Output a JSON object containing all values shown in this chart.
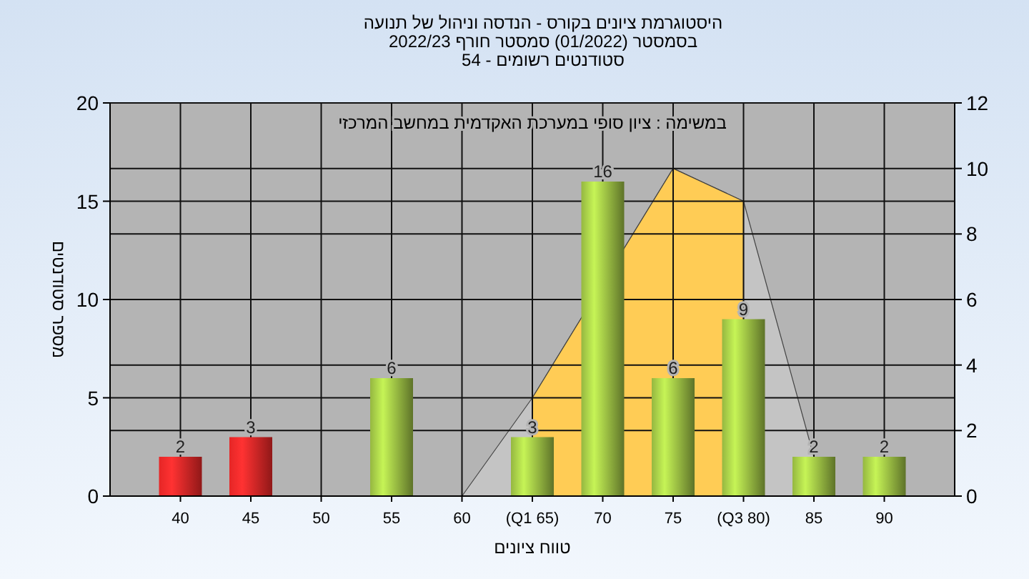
{
  "chart_data": {
    "type": "bar",
    "title": "היסטוגרמת ציונים בקורס - הנדסה וניהול של תנועה",
    "subtitle": "בסמסטר (01/2022) סמסטר חורף 2022/23\nסטודנטים רשומים - 54",
    "xlabel": "טווח ציונים",
    "ylabel": "מספר סטודנטים",
    "annotations": [
      "במשימה : ציון סופי במערכת האקדמית במחשב המרכזי"
    ],
    "categories": [
      "40",
      "45",
      "50",
      "55",
      "60",
      "(Q1 65)",
      "70",
      "75",
      "(Q3 80)",
      "85",
      "90"
    ],
    "series": [
      {
        "type": "area",
        "axis": "y2",
        "color": "#c4c4c4",
        "values": [
          null,
          null,
          null,
          null,
          0,
          3,
          null,
          10,
          9,
          1.2,
          null
        ]
      },
      {
        "type": "area",
        "axis": "y2",
        "color": "#ffcc55",
        "values": [
          null,
          null,
          null,
          null,
          null,
          3,
          null,
          10,
          9,
          null,
          null
        ]
      },
      {
        "colors": [
          "#ff2a2a",
          "#ff2a2a",
          null,
          "#a6cc48",
          null,
          "#a6cc48",
          "#a6cc48",
          "#a6cc48",
          "#a6cc48",
          "#a6cc48",
          "#a6cc48"
        ],
        "values": [
          2,
          3,
          null,
          6,
          null,
          3,
          16,
          6,
          9,
          2,
          2
        ],
        "value_labels": [
          "2",
          "3",
          null,
          "6",
          null,
          "3",
          "16",
          "6",
          "9",
          "2",
          "2"
        ]
      }
    ],
    "ylim": [
      0,
      20
    ],
    "yticks": [
      0,
      5,
      10,
      15,
      20
    ],
    "y2lim": [
      0,
      12
    ],
    "y2ticks": [
      0,
      2,
      4,
      6,
      8,
      10,
      12
    ],
    "grid": true
  }
}
